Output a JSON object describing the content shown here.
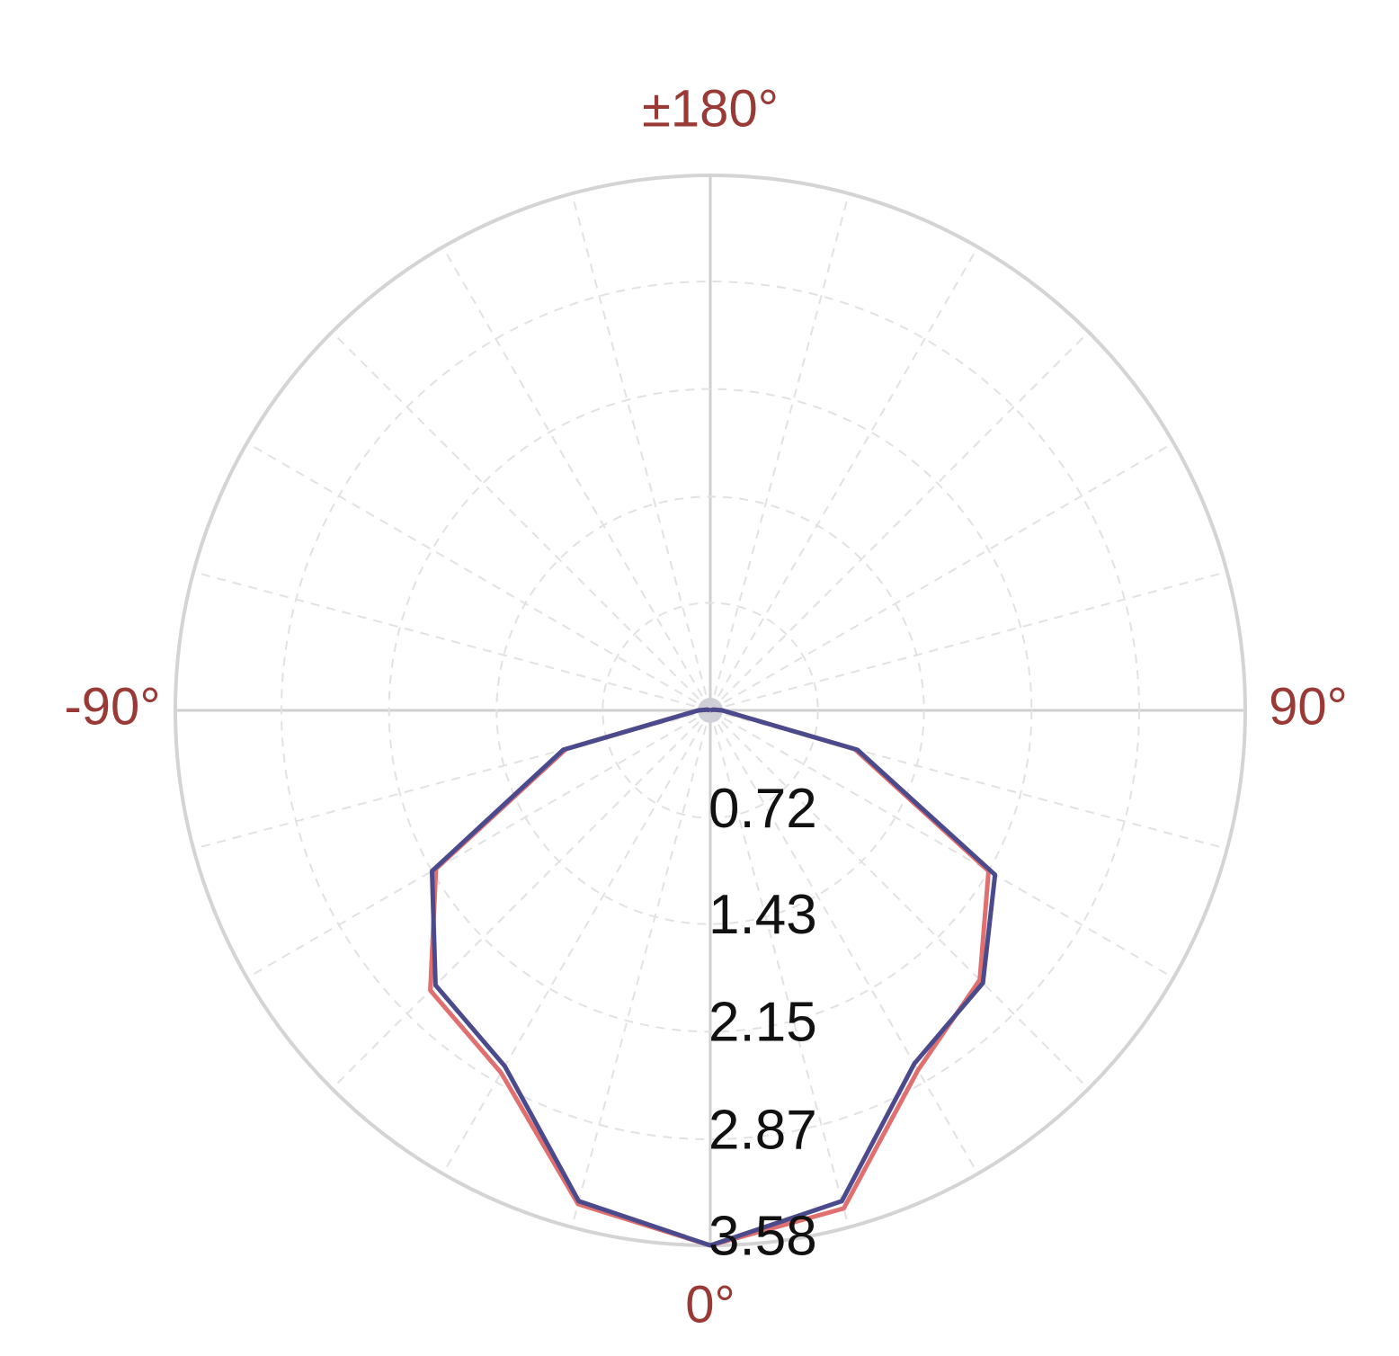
{
  "chart_data": {
    "type": "polar",
    "theta": [
      -180,
      -165,
      -150,
      -135,
      -120,
      -105,
      -90,
      -75,
      -60,
      -45,
      -30,
      -15,
      0,
      15,
      30,
      45,
      60,
      75,
      90,
      105,
      120,
      135,
      150,
      165,
      180
    ],
    "series": [
      {
        "color": "#e07070",
        "values": [
          0,
          0,
          0,
          0,
          0,
          0.02,
          0.08,
          1.0,
          2.12,
          2.65,
          2.8,
          3.42,
          3.58,
          3.45,
          2.78,
          2.55,
          2.15,
          1.0,
          0.08,
          0.02,
          0,
          0,
          0,
          0,
          0
        ]
      },
      {
        "color": "#4a4a8c",
        "values": [
          0,
          0,
          0,
          0,
          0,
          0.02,
          0.08,
          1.02,
          2.15,
          2.6,
          2.75,
          3.4,
          3.58,
          3.4,
          2.73,
          2.58,
          2.2,
          1.02,
          0.08,
          0.02,
          0,
          0,
          0,
          0,
          0
        ]
      }
    ],
    "rlim": [
      0,
      3.58
    ],
    "rticks": [
      0.72,
      1.43,
      2.15,
      2.87,
      3.58
    ],
    "thetaticks": [
      {
        "value": 180,
        "label": "±180°"
      },
      {
        "value": -90,
        "label": "-90°"
      },
      {
        "value": 90,
        "label": "90°"
      },
      {
        "value": 0,
        "label": "0°"
      }
    ],
    "theta_grid_step": 15,
    "grid": true
  }
}
